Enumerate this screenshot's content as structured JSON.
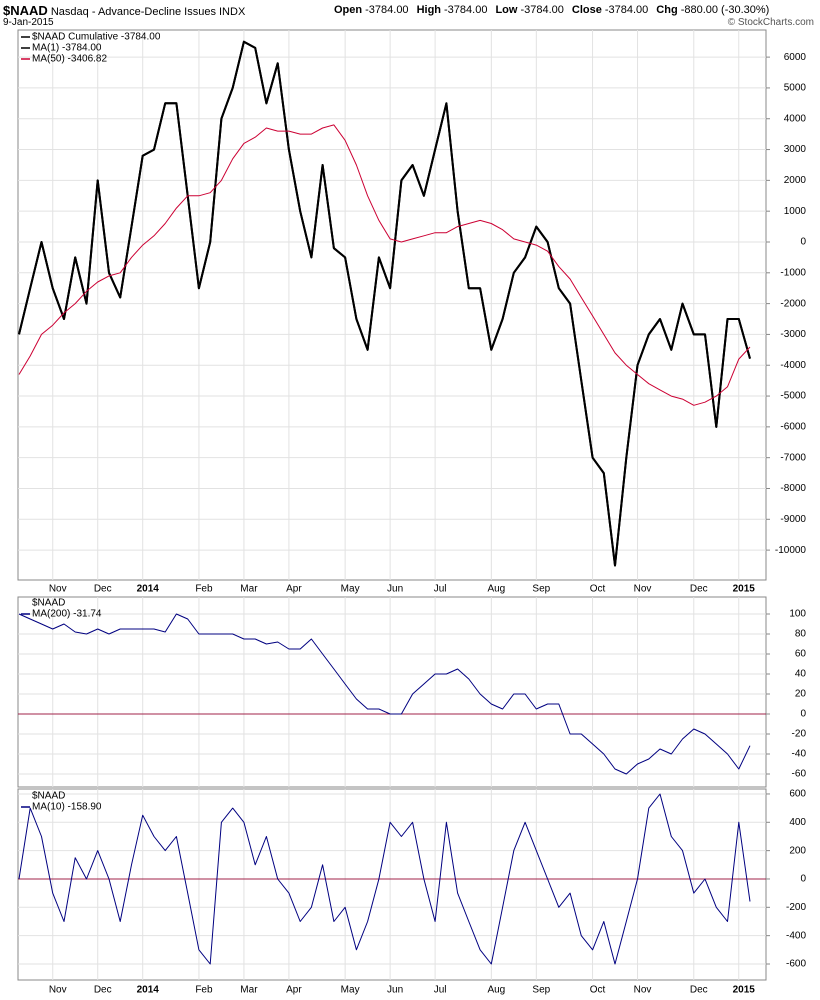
{
  "header": {
    "symbol": "$NAAD",
    "name": "Nasdaq - Advance-Decline Issues INDX",
    "date": "9-Jan-2015",
    "copyright": "© StockCharts.com",
    "quote": [
      {
        "label": "Open",
        "value": "-3784.00"
      },
      {
        "label": "High",
        "value": "-3784.00"
      },
      {
        "label": "Low",
        "value": "-3784.00"
      },
      {
        "label": "Close",
        "value": "-3784.00"
      },
      {
        "label": "Chg",
        "value": "-880.00 (-30.30%)"
      }
    ]
  },
  "chart_data": [
    {
      "type": "line",
      "categories": [
        null,
        null,
        null,
        "Nov",
        null,
        null,
        null,
        "Dec",
        null,
        null,
        null,
        "2014",
        null,
        null,
        null,
        null,
        "Feb",
        null,
        null,
        null,
        "Mar",
        null,
        null,
        null,
        "Apr",
        null,
        null,
        null,
        null,
        "May",
        null,
        null,
        null,
        "Jun",
        null,
        null,
        null,
        "Jul",
        null,
        null,
        null,
        null,
        "Aug",
        null,
        null,
        null,
        "Sep",
        null,
        null,
        null,
        null,
        "Oct",
        null,
        null,
        null,
        "Nov",
        null,
        null,
        null,
        null,
        "Dec",
        null,
        null,
        null,
        "2015",
        null
      ],
      "ylim": [
        -10970,
        6880
      ],
      "yticks": [
        6000,
        5000,
        4000,
        3000,
        2000,
        1000,
        0,
        -1000,
        -2000,
        -3000,
        -4000,
        -5000,
        -6000,
        -7000,
        -8000,
        -9000,
        -10000
      ],
      "grid": true,
      "series": [
        {
          "name": "$NAAD Cumulative -3784.00",
          "color": "#000000",
          "values": [
            -3000,
            -1500,
            0,
            -1500,
            -2500,
            -500,
            -2000,
            2000,
            -1000,
            -1800,
            500,
            2800,
            3000,
            4500,
            4500,
            1500,
            -1500,
            0,
            4000,
            5000,
            6500,
            6300,
            4500,
            5800,
            3000,
            1000,
            -500,
            2500,
            -200,
            -500,
            -2500,
            -3500,
            -500,
            -1500,
            2000,
            2500,
            1500,
            3000,
            4500,
            1000,
            -1500,
            -1500,
            -3500,
            -2500,
            -1000,
            -500,
            500,
            0,
            -1500,
            -2000,
            -4500,
            -7000,
            -7500,
            -10500,
            -7000,
            -4000,
            -3000,
            -2500,
            -3500,
            -2000,
            -3000,
            -3000,
            -6000,
            -2500,
            -2500,
            -3784
          ]
        },
        {
          "name": "MA(1) -3784.00",
          "color": "#000000",
          "values": [
            -3000,
            -1500,
            0,
            -1500,
            -2500,
            -500,
            -2000,
            2000,
            -1000,
            -1800,
            500,
            2800,
            3000,
            4500,
            4500,
            1500,
            -1500,
            0,
            4000,
            5000,
            6500,
            6300,
            4500,
            5800,
            3000,
            1000,
            -500,
            2500,
            -200,
            -500,
            -2500,
            -3500,
            -500,
            -1500,
            2000,
            2500,
            1500,
            3000,
            4500,
            1000,
            -1500,
            -1500,
            -3500,
            -2500,
            -1000,
            -500,
            500,
            0,
            -1500,
            -2000,
            -4500,
            -7000,
            -7500,
            -10500,
            -7000,
            -4000,
            -3000,
            -2500,
            -3500,
            -2000,
            -3000,
            -3000,
            -6000,
            -2500,
            -2500,
            -3784
          ]
        },
        {
          "name": "MA(50) -3406.82",
          "color": "#cc0033",
          "values": [
            -4300,
            -3700,
            -3000,
            -2700,
            -2300,
            -2000,
            -1600,
            -1300,
            -1100,
            -1000,
            -500,
            -100,
            200,
            600,
            1100,
            1500,
            1500,
            1600,
            2000,
            2700,
            3200,
            3400,
            3700,
            3600,
            3600,
            3500,
            3500,
            3700,
            3800,
            3300,
            2500,
            1500,
            700,
            100,
            0,
            100,
            200,
            300,
            300,
            500,
            600,
            700,
            600,
            400,
            100,
            0,
            -100,
            -300,
            -800,
            -1200,
            -1800,
            -2400,
            -3000,
            -3600,
            -4000,
            -4300,
            -4600,
            -4800,
            -5000,
            -5100,
            -5300,
            -5200,
            -5000,
            -4700,
            -3800,
            -3406.82
          ]
        }
      ]
    },
    {
      "type": "line",
      "title": "$NAAD",
      "ylim": [
        -73,
        117
      ],
      "yticks": [
        100,
        80,
        60,
        40,
        20,
        0,
        -20,
        -40,
        -60
      ],
      "grid": true,
      "hline": 0,
      "hline_color": "#a0234a",
      "series": [
        {
          "name": "MA(200) -31.74",
          "color": "#000080",
          "values": [
            100,
            95,
            90,
            85,
            90,
            82,
            80,
            85,
            80,
            85,
            85,
            85,
            85,
            82,
            100,
            95,
            80,
            80,
            80,
            80,
            75,
            75,
            70,
            72,
            65,
            65,
            75,
            60,
            45,
            30,
            15,
            5,
            5,
            0,
            0,
            20,
            30,
            40,
            40,
            45,
            35,
            20,
            10,
            5,
            20,
            20,
            5,
            10,
            10,
            -20,
            -20,
            -30,
            -40,
            -55,
            -60,
            -50,
            -45,
            -35,
            -40,
            -25,
            -15,
            -20,
            -30,
            -40,
            -55,
            -31.74
          ]
        }
      ]
    },
    {
      "type": "line",
      "title": "$NAAD",
      "categories": [
        null,
        null,
        null,
        "Nov",
        null,
        null,
        null,
        "Dec",
        null,
        null,
        null,
        "2014",
        null,
        null,
        null,
        null,
        "Feb",
        null,
        null,
        null,
        "Mar",
        null,
        null,
        null,
        "Apr",
        null,
        null,
        null,
        null,
        "May",
        null,
        null,
        null,
        "Jun",
        null,
        null,
        null,
        "Jul",
        null,
        null,
        null,
        null,
        "Aug",
        null,
        null,
        null,
        "Sep",
        null,
        null,
        null,
        null,
        "Oct",
        null,
        null,
        null,
        "Nov",
        null,
        null,
        null,
        null,
        "Dec",
        null,
        null,
        null,
        "2015",
        null
      ],
      "ylim": [
        -713,
        635
      ],
      "yticks": [
        600,
        400,
        200,
        0,
        -200,
        -400,
        -600
      ],
      "grid": true,
      "hline": 0,
      "hline_color": "#a0234a",
      "series": [
        {
          "name": "MA(10) -158.90",
          "color": "#000080",
          "values": [
            0,
            500,
            300,
            -100,
            -300,
            150,
            0,
            200,
            0,
            -300,
            100,
            450,
            300,
            200,
            300,
            -100,
            -500,
            -600,
            400,
            500,
            400,
            100,
            300,
            0,
            -100,
            -300,
            -200,
            100,
            -300,
            -200,
            -500,
            -300,
            0,
            400,
            300,
            400,
            0,
            -300,
            400,
            -100,
            -300,
            -500,
            -600,
            -200,
            200,
            400,
            200,
            0,
            -200,
            -100,
            -400,
            -500,
            -300,
            -600,
            -300,
            0,
            500,
            600,
            300,
            200,
            -100,
            0,
            -200,
            -300,
            400,
            -158.9
          ]
        }
      ]
    }
  ]
}
